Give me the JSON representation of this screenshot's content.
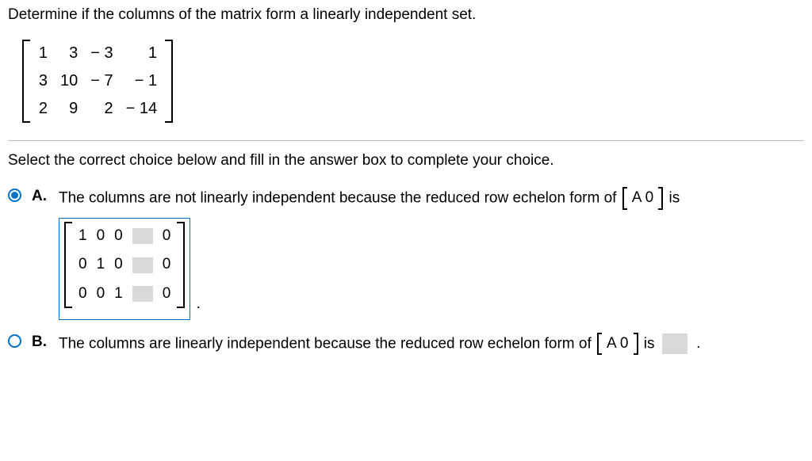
{
  "question": "Determine if the columns of the matrix form a linearly independent set.",
  "matrix_main": {
    "rows": [
      [
        "1",
        "3",
        "− 3",
        "1"
      ],
      [
        "3",
        "10",
        "− 7",
        "− 1"
      ],
      [
        "2",
        "9",
        "2",
        "− 14"
      ]
    ]
  },
  "instruction": "Select the correct choice below and fill in the answer box to complete your choice.",
  "augmented_label": "A  0",
  "choices": {
    "A": {
      "label": "A.",
      "selected": true,
      "text_before": "The columns are not linearly independent because the reduced row echelon form of ",
      "text_after": " is",
      "answer_matrix": {
        "rows": [
          [
            "1",
            "0",
            "0",
            "INPUT",
            "0"
          ],
          [
            "0",
            "1",
            "0",
            "INPUT",
            "0"
          ],
          [
            "0",
            "0",
            "1",
            "INPUT",
            "0"
          ]
        ]
      },
      "trailing_period": "."
    },
    "B": {
      "label": "B.",
      "selected": false,
      "text_before": "The columns are linearly independent because the reduced row echelon form of ",
      "text_after": " is",
      "trailing_period": "."
    }
  }
}
